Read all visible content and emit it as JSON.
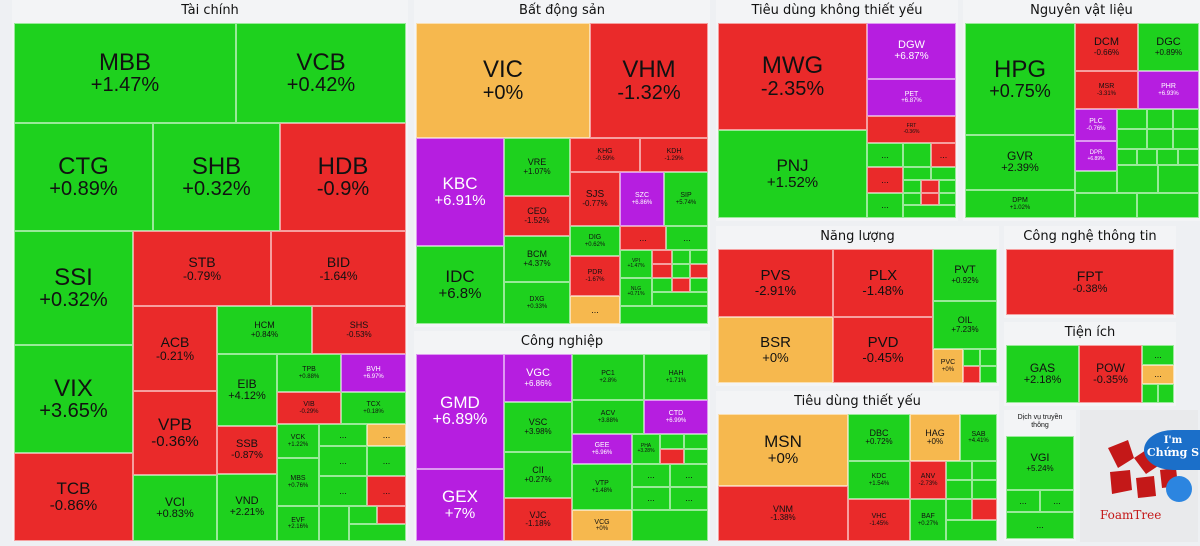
{
  "sectors": {
    "finance": "Tài chính",
    "realestate": "Bất động sản",
    "consumer_disc": "Tiêu dùng không thiết yếu",
    "materials": "Nguyên vật liệu",
    "energy": "Năng lượng",
    "tech": "Công nghệ thông tin",
    "utilities": "Tiện ích",
    "industrial": "Công nghiệp",
    "staples": "Tiêu dùng thiết yếu",
    "telecom": "Dịch vụ truyền thông"
  },
  "tiles": {
    "MBB": {
      "sym": "MBB",
      "chg": "+1.47%"
    },
    "VCB": {
      "sym": "VCB",
      "chg": "+0.42%"
    },
    "CTG": {
      "sym": "CTG",
      "chg": "+0.89%"
    },
    "SHB": {
      "sym": "SHB",
      "chg": "+0.32%"
    },
    "HDB": {
      "sym": "HDB",
      "chg": "-0.9%"
    },
    "SSI": {
      "sym": "SSI",
      "chg": "+0.32%"
    },
    "STB": {
      "sym": "STB",
      "chg": "-0.79%"
    },
    "BID": {
      "sym": "BID",
      "chg": "-1.64%"
    },
    "ACB": {
      "sym": "ACB",
      "chg": "-0.21%"
    },
    "HCM": {
      "sym": "HCM",
      "chg": "+0.84%"
    },
    "SHS": {
      "sym": "SHS",
      "chg": "-0.53%"
    },
    "VIX": {
      "sym": "VIX",
      "chg": "+3.65%"
    },
    "EIB": {
      "sym": "EIB",
      "chg": "+4.12%"
    },
    "TPB": {
      "sym": "TPB",
      "chg": "+0.88%"
    },
    "BVH": {
      "sym": "BVH",
      "chg": "+6.97%"
    },
    "VPB": {
      "sym": "VPB",
      "chg": "-0.36%"
    },
    "VIB": {
      "sym": "VIB",
      "chg": "-0.29%"
    },
    "TCX": {
      "sym": "TCX",
      "chg": "+0.18%"
    },
    "SSB": {
      "sym": "SSB",
      "chg": "-0.87%"
    },
    "VCK": {
      "sym": "VCK",
      "chg": "+1.22%"
    },
    "TCB": {
      "sym": "TCB",
      "chg": "-0.86%"
    },
    "VCI": {
      "sym": "VCI",
      "chg": "+0.83%"
    },
    "VND": {
      "sym": "VND",
      "chg": "+2.21%"
    },
    "MBS": {
      "sym": "MBS",
      "chg": "+0.76%"
    },
    "EVF": {
      "sym": "EVF",
      "chg": "+2.16%"
    },
    "VIC": {
      "sym": "VIC",
      "chg": "+0%"
    },
    "VHM": {
      "sym": "VHM",
      "chg": "-1.32%"
    },
    "KBC": {
      "sym": "KBC",
      "chg": "+6.91%"
    },
    "VRE": {
      "sym": "VRE",
      "chg": "+1.07%"
    },
    "KHG": {
      "sym": "KHG",
      "chg": "-0.59%"
    },
    "KDH": {
      "sym": "KDH",
      "chg": "-1.29%"
    },
    "CEO": {
      "sym": "CEO",
      "chg": "-1.52%"
    },
    "SJS": {
      "sym": "SJS",
      "chg": "-0.77%"
    },
    "SZC": {
      "sym": "SZC",
      "chg": "+6.86%"
    },
    "SIP": {
      "sym": "SIP",
      "chg": "+5.74%"
    },
    "IDC": {
      "sym": "IDC",
      "chg": "+6.8%"
    },
    "BCM": {
      "sym": "BCM",
      "chg": "+4.37%"
    },
    "DIG": {
      "sym": "DIG",
      "chg": "+0.62%"
    },
    "VPI": {
      "sym": "VPI",
      "chg": "+1.47%"
    },
    "PDR": {
      "sym": "PDR",
      "chg": "-1.67%"
    },
    "NLG": {
      "sym": "NLG",
      "chg": "+0.71%"
    },
    "DXG": {
      "sym": "DXG",
      "chg": "+0.33%"
    },
    "MWG": {
      "sym": "MWG",
      "chg": "-2.35%"
    },
    "DGW": {
      "sym": "DGW",
      "chg": "+6.87%"
    },
    "PET": {
      "sym": "PET",
      "chg": "+6.87%"
    },
    "FRT": {
      "sym": "FRT",
      "chg": "-0.36%"
    },
    "PNJ": {
      "sym": "PNJ",
      "chg": "+1.52%"
    },
    "HPG": {
      "sym": "HPG",
      "chg": "+0.75%"
    },
    "DCM": {
      "sym": "DCM",
      "chg": "-0.66%"
    },
    "DGC": {
      "sym": "DGC",
      "chg": "+0.89%"
    },
    "MSR": {
      "sym": "MSR",
      "chg": "-3.31%"
    },
    "PHR": {
      "sym": "PHR",
      "chg": "+6.93%"
    },
    "PLC": {
      "sym": "PLC",
      "chg": "-0.76%"
    },
    "DPR": {
      "sym": "DPR",
      "chg": "+6.89%"
    },
    "GVR": {
      "sym": "GVR",
      "chg": "+2.39%"
    },
    "DPM": {
      "sym": "DPM",
      "chg": "+1.02%"
    },
    "PVS": {
      "sym": "PVS",
      "chg": "-2.91%"
    },
    "PLX": {
      "sym": "PLX",
      "chg": "-1.48%"
    },
    "PVT": {
      "sym": "PVT",
      "chg": "+0.92%"
    },
    "OIL": {
      "sym": "OIL",
      "chg": "+7.23%"
    },
    "BSR": {
      "sym": "BSR",
      "chg": "+0%"
    },
    "PVD": {
      "sym": "PVD",
      "chg": "-0.45%"
    },
    "PVC": {
      "sym": "PVC",
      "chg": "+0%"
    },
    "FPT": {
      "sym": "FPT",
      "chg": "-0.38%"
    },
    "GAS": {
      "sym": "GAS",
      "chg": "+2.18%"
    },
    "POW": {
      "sym": "POW",
      "chg": "-0.35%"
    },
    "GMD": {
      "sym": "GMD",
      "chg": "+6.89%"
    },
    "VGC": {
      "sym": "VGC",
      "chg": "+6.86%"
    },
    "PC1": {
      "sym": "PC1",
      "chg": "+2.8%"
    },
    "HAH": {
      "sym": "HAH",
      "chg": "+1.71%"
    },
    "VSC": {
      "sym": "VSC",
      "chg": "+3.98%"
    },
    "ACV": {
      "sym": "ACV",
      "chg": "+3.88%"
    },
    "CTD": {
      "sym": "CTD",
      "chg": "+6.99%"
    },
    "GEE": {
      "sym": "GEE",
      "chg": "+6.96%"
    },
    "PHA": {
      "sym": "PHA",
      "chg": "+3.28%"
    },
    "CII": {
      "sym": "CII",
      "chg": "+0.27%"
    },
    "VTP": {
      "sym": "VTP",
      "chg": "+1.48%"
    },
    "GEX": {
      "sym": "GEX",
      "chg": "+7%"
    },
    "VJC": {
      "sym": "VJC",
      "chg": "-1.18%"
    },
    "VCG": {
      "sym": "VCG",
      "chg": "+0%"
    },
    "MSN": {
      "sym": "MSN",
      "chg": "+0%"
    },
    "DBC": {
      "sym": "DBC",
      "chg": "+0.72%"
    },
    "HAG": {
      "sym": "HAG",
      "chg": "+0%"
    },
    "SAB": {
      "sym": "SAB",
      "chg": "+4.41%"
    },
    "KDC": {
      "sym": "KDC",
      "chg": "+1.54%"
    },
    "ANV": {
      "sym": "ANV",
      "chg": "-2.73%"
    },
    "VNM": {
      "sym": "VNM",
      "chg": "-1.38%"
    },
    "VHC": {
      "sym": "VHC",
      "chg": "-1.45%"
    },
    "BAF": {
      "sym": "BAF",
      "chg": "+0.27%"
    },
    "VGI": {
      "sym": "VGI",
      "chg": "+5.24%"
    }
  },
  "more": "...",
  "logo": {
    "brand": "FoamTree",
    "badge_line1": "I'm",
    "badge_line2": "Chứng S"
  },
  "colors": {
    "up": "#1ed11e",
    "down": "#ea2a2a",
    "flat": "#f6b84e",
    "ceiling": "#b61ee0"
  }
}
